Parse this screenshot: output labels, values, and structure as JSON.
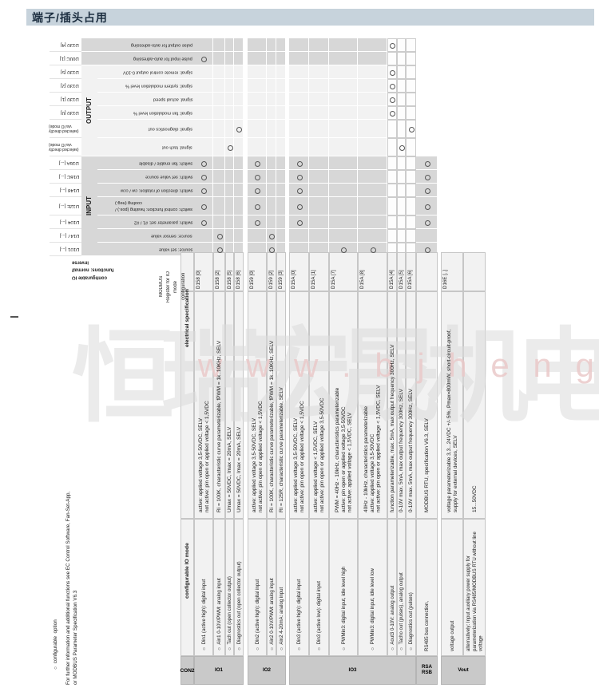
{
  "page": {
    "title": "端子/插头占用"
  },
  "colors": {
    "title_bar_bg": "#c7d3dc",
    "title_text": "#1c2e40",
    "row_dark": "#d7d7d7",
    "row_light": "#f2f2f2",
    "cell_bg": "#f2f2f2",
    "con2_bg": "#c9c9c9",
    "border": "#c6c6c6",
    "watermark_gray": "#dcdcdc",
    "watermark_pink": "#eac9c9"
  },
  "corner": {
    "io_header_lines": [
      "configurable IO",
      "functions: normal/",
      "inverse"
    ],
    "modbus_header_lines": [
      "MODBUS",
      "Register for IO",
      "mode",
      "configuration"
    ]
  },
  "side_notes": {
    "option_note": "○ configurable  option",
    "info_line1": "For further information and additional functions see EC Control Software, Fan-Set-App,",
    "info_line2": "or MODBUS Parameter Specification V6.3"
  },
  "watermark": {
    "cn_text": "恒瑞宏晟机电",
    "latin_text": "w w w . b j h e n g r u i . c n"
  },
  "io_matrix": {
    "groups": [
      {
        "label": "OUTPUT",
        "row_from": 2,
        "row_to": 7
      },
      {
        "label": "INPUT",
        "row_from": 8,
        "row_to": 14
      }
    ],
    "rows": [
      {
        "register": "D130 [4]",
        "label": "pulse output for auto-adressing",
        "marks": [
          11
        ]
      },
      {
        "register": "D00C [1]",
        "label": "pulse input for auto-adressing",
        "marks": [
          0
        ]
      },
      {
        "register": "D130 [5]",
        "label": "signal: remote control output 0-10V",
        "marks": [
          11
        ]
      },
      {
        "register": "D130 [2]",
        "label": "signal: system modulation level %",
        "marks": [
          11
        ]
      },
      {
        "register": "D130 [1]",
        "label": "signal: actual speed",
        "marks": [
          11
        ]
      },
      {
        "register": "D130 [0]",
        "label": "signal: fan modulation level %",
        "marks": [
          11
        ]
      },
      {
        "register": "(selected directly\nvia IO mode)",
        "label": "signal: diagnostics out",
        "marks": [
          3,
          13
        ]
      },
      {
        "register": "(selected directly\nvia IO mode)",
        "label": "signal: tach out",
        "marks": [
          2,
          12
        ]
      },
      {
        "register": "D16A [...]",
        "label": "switch: fan enable / disable",
        "marks": [
          0,
          4,
          7,
          14
        ]
      },
      {
        "register": "D16C [...]",
        "label": "switch: set value source",
        "marks": [
          0,
          4,
          7,
          14
        ]
      },
      {
        "register": "D148 [...]",
        "label": "switch: direction of rotation: cw / ccw",
        "marks": [
          0,
          4,
          7,
          14
        ]
      },
      {
        "register": "D12E [...]",
        "label": "switch: control function: heating (pos.) /\ncooling (neg.)",
        "marks": [
          0,
          4,
          7,
          14
        ]
      },
      {
        "register": "D104 [...]",
        "label": "switch: parameter set: #1 / #2",
        "marks": [
          0,
          4,
          7,
          14
        ]
      },
      {
        "register": "D147 [...]",
        "label": "source: sensor value",
        "marks": [
          1,
          5
        ]
      },
      {
        "register": "D101 [...]",
        "label": "source: set value",
        "marks": [
          1,
          5,
          9,
          10,
          14
        ]
      }
    ]
  },
  "connector_table": {
    "headers": {
      "con2": "CON2",
      "io_mode": "configurable IO mode",
      "spec": "electrical specification"
    },
    "strips": [
      {
        "code": "D158 [0]",
        "io_mode": [
          "○ Din1 (active high): digital input"
        ],
        "spec": [
          "active: applied voltage 3,5-50VDC, SELV",
          "not active: pin open or applied voltage < 1,5VDC"
        ]
      },
      {
        "code": "D158 [2]",
        "io_mode": [
          "○ Ain1 0-10V/PWM: analog input"
        ],
        "spec": [
          "Ri = 100K, characteristic curve parameterizable, fPWM = 1k..10KHz, SELV"
        ]
      },
      {
        "code": "D158 [5]",
        "io_mode": [
          "○ Tach out (open collector output)"
        ],
        "spec": [
          "Umax = 50VDC, Imax = 20mA, SELV"
        ]
      },
      {
        "code": "D158 [6]",
        "io_mode": [
          "○ Diagnostics out (open collector output)"
        ],
        "spec": [
          "Umax = 50VDC, Imax = 20mA, SELV"
        ]
      },
      {
        "code": "D159 [0]",
        "io_mode": [
          "○ Din2 (active high): digital input"
        ],
        "spec": [
          "active: applied voltage 3,5-50VDC, SELV",
          "not active: pin open or applied voltage < 1,5VDC"
        ]
      },
      {
        "code": "D159 [2]",
        "io_mode": [
          "○ Ain2 0-10V/PWM: analog input"
        ],
        "spec": [
          "Ri = 100K, characteristic curve parameterizable, fPWM = 1k..10KHz, SELV"
        ]
      },
      {
        "code": "D159 [3]",
        "io_mode": [
          "○ Ain2 4-20mA: analog input"
        ],
        "spec": [
          "Ri = 125R, characteristic curve parameterizable, SELV"
        ]
      },
      {
        "code": "D15A [0]",
        "io_mode": [
          "○ Din3 (active high): digital input"
        ],
        "spec": [
          "active: applied voltage 3,5-50VDC, SELV",
          "not active: pin open or applied voltage < 1,5VDC"
        ]
      },
      {
        "code": "D15A [1]",
        "io_mode": [
          "○ Din3 (active low): digital input"
        ],
        "spec": [
          "active: applied voltage < 1,5VDC, SELV",
          "not active: pin open or applied voltage 3,5-50VDC"
        ]
      },
      {
        "code": "D15A [7]",
        "io_mode": [
          "○ PWMin3: digital input, idle level high"
        ],
        "spec": [
          "PWM = 40Hz - 10kHz, characteristics parameterizable",
          "active: pin open or applied voltage 3,5-50VDC",
          "not active: applied voltage < 1,5VDC, SELV"
        ]
      },
      {
        "code": "D15A [8]",
        "io_mode": [
          "○ PWMin3: digital input, idle level low"
        ],
        "spec": [
          "40Hz - 10kHz, characteristics parameterizable",
          "active: applied voltage 3,5-50VDC",
          "not active: pin open or applied voltage < 1,5VDC, SELV"
        ]
      },
      {
        "code": "D15A [4]",
        "io_mode": [
          "○ Aout3 0-10V: analog output"
        ],
        "spec": [
          "function parameterizable, max. 5mA, max output frequency 300Hz, SELV"
        ]
      },
      {
        "code": "D15A [5]",
        "io_mode": [
          "○ Tacho out (pulses), analog output"
        ],
        "spec": [
          "0-10V max. 5mA, max output frequency 300Hz, SELV"
        ]
      },
      {
        "code": "D15A [6]",
        "io_mode": [
          "○ Diagnostics out (pulses)"
        ],
        "spec": [
          "0-10V max. 5mA, max output frequency 300Hz, SELV"
        ]
      },
      {
        "code": "",
        "io_mode": [
          "RS485 bus connection,"
        ],
        "spec": [
          "MODBUS RTU, specification V6.3, SELV"
        ]
      },
      {
        "code": "D16E [..]",
        "io_mode": [
          "voltage output"
        ],
        "spec": [
          "voltage parameterizable 3,3...24VDC +/- 5%, Pmax=800mW, short-circuit-proof,",
          "supply for external devices, SELV"
        ]
      },
      {
        "code": "",
        "io_mode": [
          "alternatively: Input auxiliary power supply for",
          "parameterization via RS485/MODBUS RTU without line",
          "voltage"
        ],
        "spec": [
          "15...50VDC"
        ]
      }
    ],
    "con2_groups": [
      {
        "label": "IO1",
        "from": 0,
        "to": 3
      },
      {
        "label": "IO2",
        "from": 4,
        "to": 6
      },
      {
        "label": "IO3",
        "from": 7,
        "to": 13
      },
      {
        "label": "RSA\nRSB",
        "from": 14,
        "to": 14
      },
      {
        "label": "Vout",
        "from": 15,
        "to": 16
      }
    ]
  }
}
